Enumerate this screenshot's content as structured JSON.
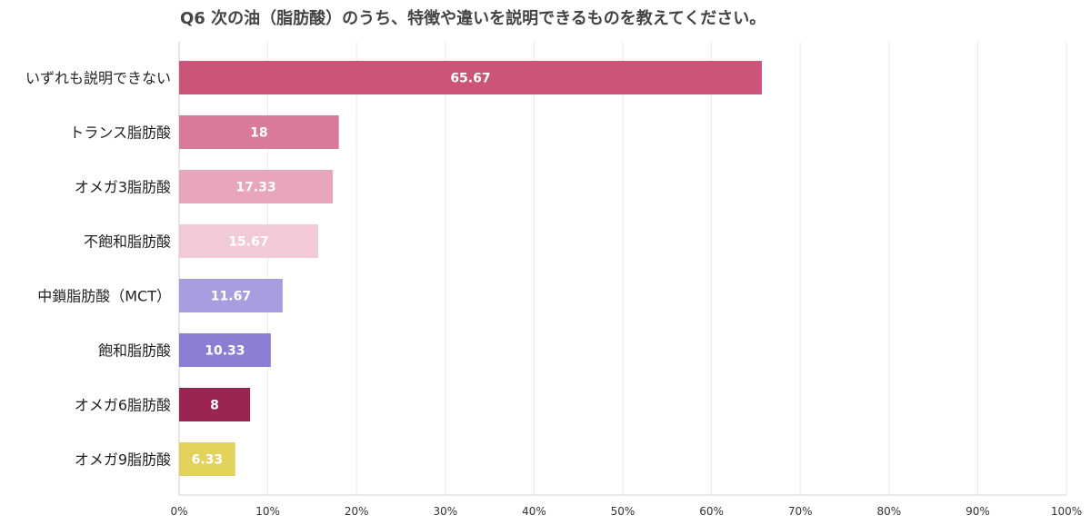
{
  "chart_data": {
    "type": "bar",
    "orientation": "horizontal",
    "title": "Q6 次の油（脂肪酸）のうち、特徴や違いを説明できるものを教えてください。",
    "categories": [
      "いずれも説明できない",
      "トランス脂肪酸",
      "オメガ3脂肪酸",
      "不飽和脂肪酸",
      "中鎖脂肪酸（MCT）",
      "飽和脂肪酸",
      "オメガ6脂肪酸",
      "オメガ9脂肪酸"
    ],
    "values": [
      65.67,
      18,
      17.33,
      15.67,
      11.67,
      10.33,
      8,
      6.33
    ],
    "data_labels": [
      "65.67",
      "18",
      "17.33",
      "15.67",
      "11.67",
      "10.33",
      "8",
      "6.33"
    ],
    "colors": [
      "#cc5479",
      "#d9799c",
      "#e8a6bd",
      "#f2c9d8",
      "#a79ee0",
      "#8a7fd4",
      "#9c2453",
      "#e3d35b"
    ],
    "xlim": [
      0,
      100
    ],
    "x_ticks": [
      "0%",
      "10%",
      "20%",
      "30%",
      "40%",
      "50%",
      "60%",
      "70%",
      "80%",
      "90%",
      "100%"
    ],
    "grid": true,
    "legend": "none"
  }
}
